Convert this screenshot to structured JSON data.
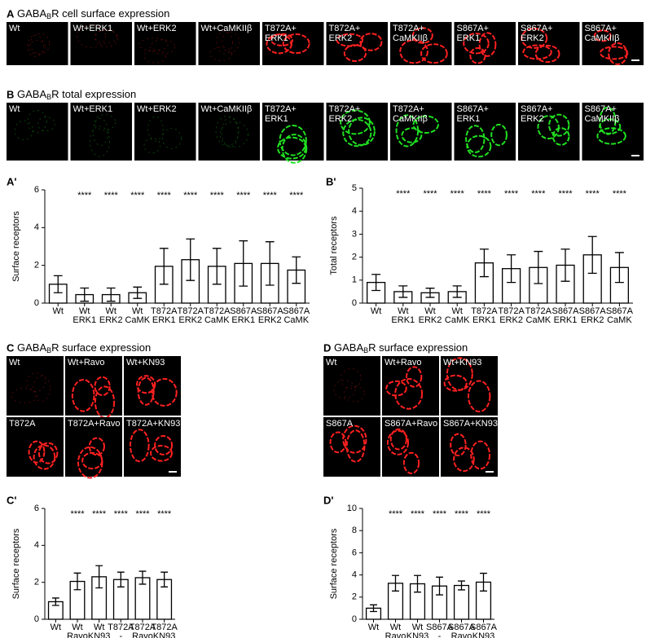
{
  "image_panels": [
    {
      "label": "A",
      "title": [
        "GABA",
        "B",
        "R cell surface expression"
      ],
      "color": "#ff2020",
      "tiles": [
        [
          "Wt"
        ],
        [
          "Wt+ERK1"
        ],
        [
          "Wt+ERK2"
        ],
        [
          "Wt+CaMKIIβ"
        ],
        [
          "T872A+",
          "ERK1"
        ],
        [
          "T872A+",
          "ERK2"
        ],
        [
          "T872A+",
          "CaMKIIβ"
        ],
        [
          "S867A+",
          "ERK1"
        ],
        [
          "S867A+",
          "ERK2"
        ],
        [
          "S867A+",
          "CaMKIIβ"
        ]
      ]
    },
    {
      "label": "B",
      "title": [
        "GABA",
        "B",
        "R total expression"
      ],
      "color": "#20e020",
      "tiles": [
        [
          "Wt"
        ],
        [
          "Wt+ERK1"
        ],
        [
          "Wt+ERK2"
        ],
        [
          "Wt+CaMKIIβ"
        ],
        [
          "T872A+",
          "ERK1"
        ],
        [
          "T872A+",
          "ERK2"
        ],
        [
          "T872A+",
          "CaMKIIβ"
        ],
        [
          "S867A+",
          "ERK1"
        ],
        [
          "S867A+",
          "ERK2"
        ],
        [
          "S867A+",
          "CaMKIIβ"
        ]
      ]
    },
    {
      "label": "C",
      "title": [
        "GABA",
        "B",
        "R surface expression"
      ],
      "color": "#ff2020",
      "tiles": [
        [
          "Wt"
        ],
        [
          "Wt+Ravo"
        ],
        [
          "Wt+KN93"
        ],
        [
          "T872A"
        ],
        [
          "T872A+Ravo"
        ],
        [
          "T872A+KN93"
        ]
      ]
    },
    {
      "label": "D",
      "title": [
        "GABA",
        "B",
        "R surface expression"
      ],
      "color": "#ff2020",
      "tiles": [
        [
          "Wt"
        ],
        [
          "Wt+Ravo"
        ],
        [
          "Wt+KN93"
        ],
        [
          "S867A"
        ],
        [
          "S867A+Ravo"
        ],
        [
          "S867A+KN93"
        ]
      ]
    }
  ],
  "chart_data": [
    {
      "type": "bar",
      "panel_label": "A'",
      "y_label": "Surface receptors",
      "categories": [
        [
          "Wt"
        ],
        [
          "Wt",
          "ERK1"
        ],
        [
          "Wt",
          "ERK2"
        ],
        [
          "Wt",
          "CaMK"
        ],
        [
          "T872A",
          "ERK1"
        ],
        [
          "T872A",
          "ERK2"
        ],
        [
          "T872A",
          "CaMK"
        ],
        [
          "S867A",
          "ERK1"
        ],
        [
          "S867A",
          "ERK2"
        ],
        [
          "S867A",
          "CaMK"
        ]
      ],
      "values": [
        1.0,
        0.45,
        0.45,
        0.55,
        1.95,
        2.3,
        1.95,
        2.1,
        2.1,
        1.75
      ],
      "errors": [
        0.45,
        0.35,
        0.35,
        0.3,
        0.95,
        1.1,
        0.95,
        1.2,
        1.15,
        0.7
      ],
      "significance": [
        null,
        "****",
        "****",
        "****",
        "****",
        "****",
        "****",
        "****",
        "****",
        "****"
      ],
      "ylim": [
        0,
        6
      ],
      "yticks": [
        0,
        2,
        4,
        6
      ]
    },
    {
      "type": "bar",
      "panel_label": "B'",
      "y_label": "Total receptors",
      "categories": [
        [
          "Wt"
        ],
        [
          "Wt",
          "ERK1"
        ],
        [
          "Wt",
          "ERK2"
        ],
        [
          "Wt",
          "CaMK"
        ],
        [
          "T872A",
          "ERK1"
        ],
        [
          "T872A",
          "ERK2"
        ],
        [
          "T872A",
          "CaMK"
        ],
        [
          "S867A",
          "ERK1"
        ],
        [
          "S867A",
          "ERK2"
        ],
        [
          "S867A",
          "CaMK"
        ]
      ],
      "values": [
        0.9,
        0.5,
        0.45,
        0.5,
        1.75,
        1.5,
        1.55,
        1.65,
        2.1,
        1.55
      ],
      "errors": [
        0.35,
        0.25,
        0.2,
        0.25,
        0.6,
        0.6,
        0.7,
        0.7,
        0.8,
        0.65
      ],
      "significance": [
        null,
        "****",
        "****",
        "****",
        "****",
        "****",
        "****",
        "****",
        "****",
        "****"
      ],
      "ylim": [
        0,
        5
      ],
      "yticks": [
        0,
        1,
        2,
        3,
        4,
        5
      ]
    },
    {
      "type": "bar",
      "panel_label": "C'",
      "y_label": "Surface receptors",
      "categories": [
        [
          "Wt"
        ],
        [
          "Wt",
          "Ravo"
        ],
        [
          "Wt",
          "KN93"
        ],
        [
          "T872A",
          "-"
        ],
        [
          "T872A",
          "Ravo"
        ],
        [
          "T872A",
          "KN93"
        ]
      ],
      "values": [
        0.95,
        2.05,
        2.3,
        2.15,
        2.25,
        2.15
      ],
      "errors": [
        0.2,
        0.45,
        0.6,
        0.4,
        0.35,
        0.4
      ],
      "significance": [
        null,
        "****",
        "****",
        "****",
        "****",
        "****"
      ],
      "ylim": [
        0,
        6
      ],
      "yticks": [
        0,
        2,
        4,
        6
      ]
    },
    {
      "type": "bar",
      "panel_label": "D'",
      "y_label": "Surface receptors",
      "categories": [
        [
          "Wt"
        ],
        [
          "Wt",
          "Ravo"
        ],
        [
          "Wt",
          "KN93"
        ],
        [
          "S867A",
          "-"
        ],
        [
          "S867A",
          "Ravo"
        ],
        [
          "S867A",
          "KN93"
        ]
      ],
      "values": [
        1.0,
        3.25,
        3.2,
        3.0,
        3.05,
        3.35
      ],
      "errors": [
        0.3,
        0.7,
        0.75,
        0.8,
        0.4,
        0.8
      ],
      "significance": [
        null,
        "****",
        "****",
        "****",
        "****",
        "****"
      ],
      "ylim": [
        0,
        10
      ],
      "yticks": [
        0,
        2,
        4,
        6,
        8,
        10
      ]
    }
  ]
}
